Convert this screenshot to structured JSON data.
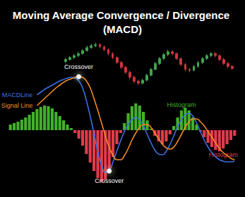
{
  "chart_data": [
    {
      "type": "candlestick",
      "title": "Moving Average Convergence / Divergence (MACD)",
      "categories": [
        null,
        null,
        null,
        null,
        null,
        null,
        null,
        null,
        null,
        null,
        null,
        null,
        null,
        null,
        null,
        null,
        null,
        null,
        null,
        null,
        null,
        null,
        null,
        null,
        null,
        null,
        null,
        null,
        null,
        null,
        null,
        null,
        null,
        null,
        null,
        null,
        null,
        null,
        null,
        null
      ],
      "values": [
        [
          58,
          62,
          55,
          65
        ],
        [
          62,
          66,
          60,
          69
        ],
        [
          66,
          70,
          63,
          73
        ],
        [
          70,
          74,
          67,
          78
        ],
        [
          74,
          80,
          72,
          83
        ],
        [
          80,
          86,
          78,
          90
        ],
        [
          86,
          90,
          84,
          94
        ],
        [
          90,
          92,
          87,
          96
        ],
        [
          92,
          88,
          85,
          95
        ],
        [
          88,
          82,
          79,
          90
        ],
        [
          82,
          74,
          71,
          85
        ],
        [
          74,
          66,
          63,
          77
        ],
        [
          66,
          56,
          53,
          68
        ],
        [
          56,
          46,
          43,
          59
        ],
        [
          46,
          36,
          33,
          49
        ],
        [
          36,
          26,
          22,
          39
        ],
        [
          26,
          18,
          14,
          29
        ],
        [
          18,
          14,
          10,
          21
        ],
        [
          14,
          20,
          11,
          23
        ],
        [
          20,
          30,
          18,
          33
        ],
        [
          30,
          42,
          28,
          45
        ],
        [
          42,
          54,
          40,
          57
        ],
        [
          54,
          64,
          51,
          67
        ],
        [
          64,
          72,
          61,
          75
        ],
        [
          72,
          78,
          69,
          82
        ],
        [
          78,
          74,
          71,
          81
        ],
        [
          74,
          64,
          61,
          76
        ],
        [
          64,
          52,
          49,
          66
        ],
        [
          52,
          42,
          39,
          55
        ],
        [
          42,
          40,
          36,
          45
        ],
        [
          40,
          48,
          38,
          51
        ],
        [
          48,
          56,
          45,
          59
        ],
        [
          56,
          64,
          53,
          67
        ],
        [
          64,
          70,
          61,
          73
        ],
        [
          70,
          74,
          67,
          77
        ],
        [
          74,
          70,
          66,
          77
        ],
        [
          70,
          62,
          59,
          72
        ],
        [
          62,
          54,
          51,
          65
        ],
        [
          54,
          48,
          45,
          57
        ],
        [
          48,
          44,
          41,
          51
        ]
      ],
      "ylim": [
        0,
        100
      ],
      "tick_labels": false
    },
    {
      "type": "macd",
      "categories": [
        null,
        null,
        null,
        null,
        null,
        null,
        null,
        null,
        null,
        null,
        null,
        null,
        null,
        null,
        null,
        null,
        null,
        null,
        null,
        null,
        null,
        null,
        null,
        null,
        null,
        null,
        null,
        null,
        null,
        null,
        null,
        null,
        null,
        null,
        null,
        null,
        null,
        null,
        null,
        null,
        null,
        null,
        null,
        null,
        null,
        null,
        null,
        null,
        null,
        null,
        null,
        null,
        null,
        null,
        null,
        null,
        null,
        null,
        null,
        null
      ],
      "series": [
        {
          "name": "Histogram",
          "type": "bar",
          "color": "#43b02a",
          "values": [
            8,
            10,
            12,
            15,
            18,
            22,
            26,
            30,
            33,
            35,
            34,
            31,
            26,
            20,
            14,
            8,
            3,
            null,
            null,
            null,
            null,
            null,
            null,
            null,
            null,
            null,
            null,
            null,
            null,
            null,
            10,
            24,
            34,
            38,
            35,
            26,
            14,
            2,
            null,
            null,
            null,
            null,
            null,
            6,
            18,
            28,
            32,
            28,
            18,
            8,
            null,
            null,
            null,
            null,
            null,
            null,
            null,
            null,
            null,
            null
          ]
        },
        {
          "name": "Histogram",
          "type": "bar",
          "color": "#e23b4b",
          "values": [
            null,
            null,
            null,
            null,
            null,
            null,
            null,
            null,
            null,
            null,
            null,
            null,
            null,
            null,
            null,
            null,
            null,
            -4,
            -12,
            -22,
            -34,
            -46,
            -58,
            -68,
            -74,
            -70,
            -56,
            -38,
            -20,
            -4,
            null,
            null,
            null,
            null,
            null,
            null,
            null,
            null,
            -8,
            -16,
            -20,
            -16,
            -6,
            null,
            null,
            null,
            null,
            null,
            null,
            null,
            -2,
            -10,
            -18,
            -24,
            -28,
            -30,
            -26,
            -20,
            -14,
            -8
          ]
        },
        {
          "name": "MACDLine",
          "type": "line",
          "color": "#3d6fe0",
          "values": [
            null,
            null,
            null,
            null,
            null,
            null,
            null,
            50,
            54,
            58,
            61,
            64,
            67,
            70,
            72,
            74,
            75,
            74,
            70,
            60,
            42,
            20,
            -5,
            -30,
            -50,
            -60,
            -58,
            -45,
            -30,
            -15,
            -2,
            8,
            15,
            18,
            15,
            6,
            -6,
            -18,
            -28,
            -34,
            -35,
            -30,
            -20,
            -8,
            5,
            15,
            22,
            24,
            20,
            10,
            -2,
            -14,
            -24,
            -32,
            -38,
            -42,
            -44,
            -45,
            -45,
            -44
          ]
        },
        {
          "name": "Signal Line",
          "type": "line",
          "color": "#f08a24",
          "values": [
            null,
            null,
            null,
            null,
            null,
            null,
            null,
            35,
            40,
            45,
            50,
            55,
            60,
            64,
            68,
            71,
            73,
            75,
            76,
            75,
            70,
            60,
            45,
            28,
            10,
            -8,
            -24,
            -36,
            -42,
            -42,
            -36,
            -26,
            -14,
            -4,
            4,
            8,
            8,
            4,
            -4,
            -12,
            -20,
            -25,
            -27,
            -24,
            -16,
            -6,
            4,
            12,
            16,
            16,
            12,
            6,
            -2,
            -10,
            -18,
            -26,
            -32,
            -36,
            -40,
            -42
          ]
        }
      ],
      "annotations": [
        {
          "text": "MACDLine",
          "series": "MACDLine",
          "index": 7
        },
        {
          "text": "Signal Line",
          "series": "Signal Line",
          "index": 7
        },
        {
          "text": "Crossover",
          "series": "Signal Line",
          "index": 18,
          "color": "#ffffff"
        },
        {
          "text": "Crossover",
          "series": "MACDLine",
          "index": 26,
          "color": "#ffffff"
        },
        {
          "text": "Histogram",
          "series": "Histogram",
          "index": 45
        },
        {
          "text": "Histogram",
          "series": "Histogram",
          "index": 56
        }
      ],
      "ylim": [
        -80,
        80
      ],
      "tick_labels": false
    }
  ]
}
